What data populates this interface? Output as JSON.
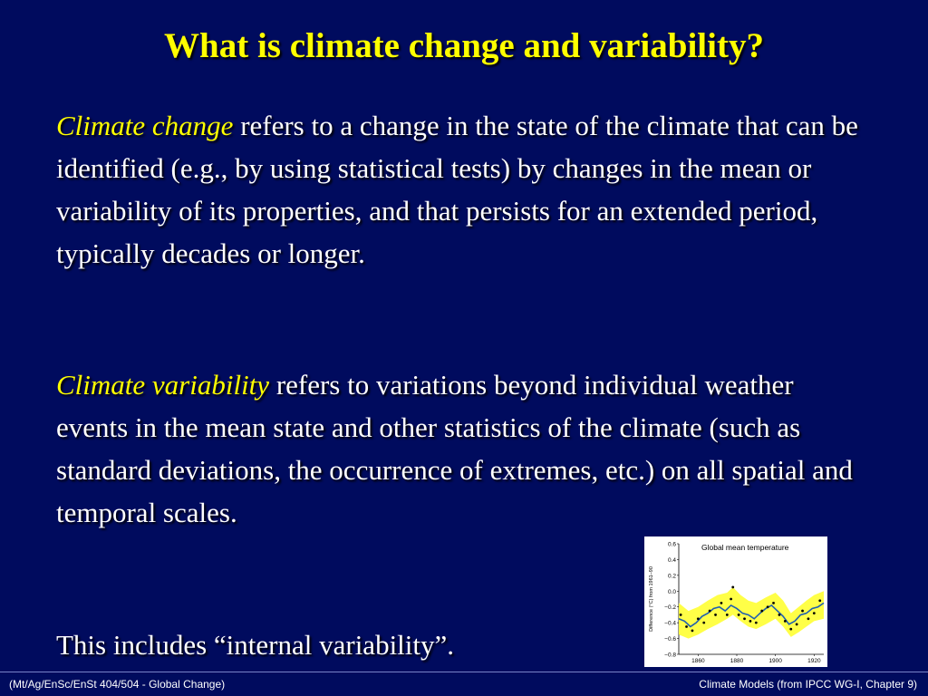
{
  "slide": {
    "title": "What is climate change and variability?",
    "para1": {
      "term": "Climate change",
      "text": " refers to a change in the state of the climate that can be identified (e.g., by using statistical tests) by changes in the mean or variability of its properties, and that persists for an extended period, typically decades or longer."
    },
    "para2": {
      "term": "Climate variability",
      "text": " refers to variations beyond individual weather events in the mean state and other statistics of the climate (such as standard deviations, the occurrence of extremes, etc.) on all spatial and temporal scales."
    },
    "para3": "This includes “internal variability”."
  },
  "footer": {
    "left": "(Mt/Ag/EnSc/EnSt 404/504 - Global Change)",
    "right": "Climate Models  (from IPCC WG-I, Chapter 9)"
  },
  "chart_data": {
    "type": "line",
    "title": "Global mean temperature",
    "ylabel": "Difference (°C) from 1961–90",
    "xlabel": "",
    "xlim": [
      1850,
      1925
    ],
    "ylim": [
      -0.8,
      0.6
    ],
    "x_ticks": [
      "1860",
      "1880",
      "1900",
      "1920"
    ],
    "y_ticks": [
      "0.6",
      "0.4",
      "0.2",
      "0.0",
      "−0.2",
      "−0.4",
      "−0.6",
      "−0.8"
    ],
    "series": [
      {
        "kind": "band",
        "color": "#ffff33",
        "x": [
          1850,
          1855,
          1860,
          1865,
          1870,
          1875,
          1878,
          1882,
          1886,
          1890,
          1895,
          1900,
          1904,
          1908,
          1912,
          1916,
          1920,
          1925
        ],
        "low": [
          -0.55,
          -0.6,
          -0.55,
          -0.48,
          -0.42,
          -0.35,
          -0.3,
          -0.38,
          -0.45,
          -0.48,
          -0.42,
          -0.35,
          -0.45,
          -0.58,
          -0.52,
          -0.45,
          -0.38,
          -0.35
        ],
        "high": [
          -0.15,
          -0.25,
          -0.2,
          -0.12,
          -0.05,
          -0.02,
          0.05,
          -0.05,
          -0.12,
          -0.15,
          -0.08,
          -0.02,
          -0.12,
          -0.28,
          -0.2,
          -0.12,
          -0.05,
          0.0
        ]
      },
      {
        "kind": "line",
        "color": "#1f5fb0",
        "x": [
          1850,
          1853,
          1856,
          1859,
          1862,
          1865,
          1868,
          1871,
          1874,
          1877,
          1880,
          1883,
          1886,
          1889,
          1892,
          1895,
          1898,
          1901,
          1904,
          1907,
          1910,
          1913,
          1916,
          1919,
          1922,
          1925
        ],
        "y": [
          -0.35,
          -0.38,
          -0.45,
          -0.4,
          -0.32,
          -0.28,
          -0.22,
          -0.2,
          -0.25,
          -0.18,
          -0.22,
          -0.28,
          -0.3,
          -0.35,
          -0.28,
          -0.22,
          -0.18,
          -0.25,
          -0.32,
          -0.42,
          -0.38,
          -0.3,
          -0.28,
          -0.22,
          -0.2,
          -0.15
        ]
      },
      {
        "kind": "points",
        "color": "#000000",
        "x": [
          1851,
          1854,
          1857,
          1860,
          1863,
          1866,
          1869,
          1872,
          1875,
          1877,
          1878,
          1881,
          1884,
          1887,
          1890,
          1893,
          1896,
          1899,
          1902,
          1905,
          1908,
          1911,
          1914,
          1917,
          1920,
          1923
        ],
        "y": [
          -0.3,
          -0.45,
          -0.5,
          -0.35,
          -0.4,
          -0.25,
          -0.3,
          -0.15,
          -0.3,
          -0.1,
          0.05,
          -0.3,
          -0.35,
          -0.38,
          -0.4,
          -0.25,
          -0.2,
          -0.15,
          -0.3,
          -0.38,
          -0.48,
          -0.42,
          -0.25,
          -0.35,
          -0.28,
          -0.12
        ]
      }
    ]
  }
}
